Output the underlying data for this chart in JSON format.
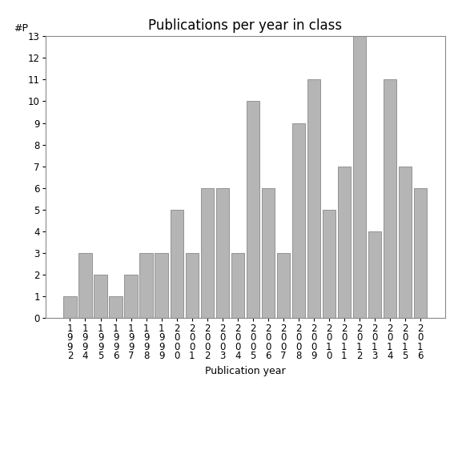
{
  "title": "Publications per year in class",
  "xlabel": "Publication year",
  "ylabel": "#P",
  "categories": [
    "1\n9\n9\n2",
    "1\n9\n9\n4",
    "1\n9\n9\n5",
    "1\n9\n9\n6",
    "1\n9\n9\n7",
    "1\n9\n9\n8",
    "1\n9\n9\n9",
    "2\n0\n0\n0",
    "2\n0\n0\n1",
    "2\n0\n0\n2",
    "2\n0\n0\n3",
    "2\n0\n0\n4",
    "2\n0\n0\n5",
    "2\n0\n0\n6",
    "2\n0\n0\n7",
    "2\n0\n0\n8",
    "2\n0\n0\n9",
    "2\n0\n1\n0",
    "2\n0\n1\n1",
    "2\n0\n1\n2",
    "2\n0\n1\n3",
    "2\n0\n1\n4",
    "2\n0\n1\n5",
    "2\n0\n1\n6"
  ],
  "values": [
    1,
    3,
    2,
    1,
    2,
    3,
    3,
    5,
    3,
    6,
    6,
    3,
    10,
    6,
    3,
    9,
    11,
    5,
    7,
    13,
    4,
    11,
    7,
    6
  ],
  "bar_color": "#b5b5b5",
  "bar_edgecolor": "#888888",
  "ylim": [
    0,
    13
  ],
  "yticks": [
    0,
    1,
    2,
    3,
    4,
    5,
    6,
    7,
    8,
    9,
    10,
    11,
    12,
    13
  ],
  "background_color": "#ffffff",
  "title_fontsize": 12,
  "label_fontsize": 9,
  "tick_fontsize": 8.5
}
